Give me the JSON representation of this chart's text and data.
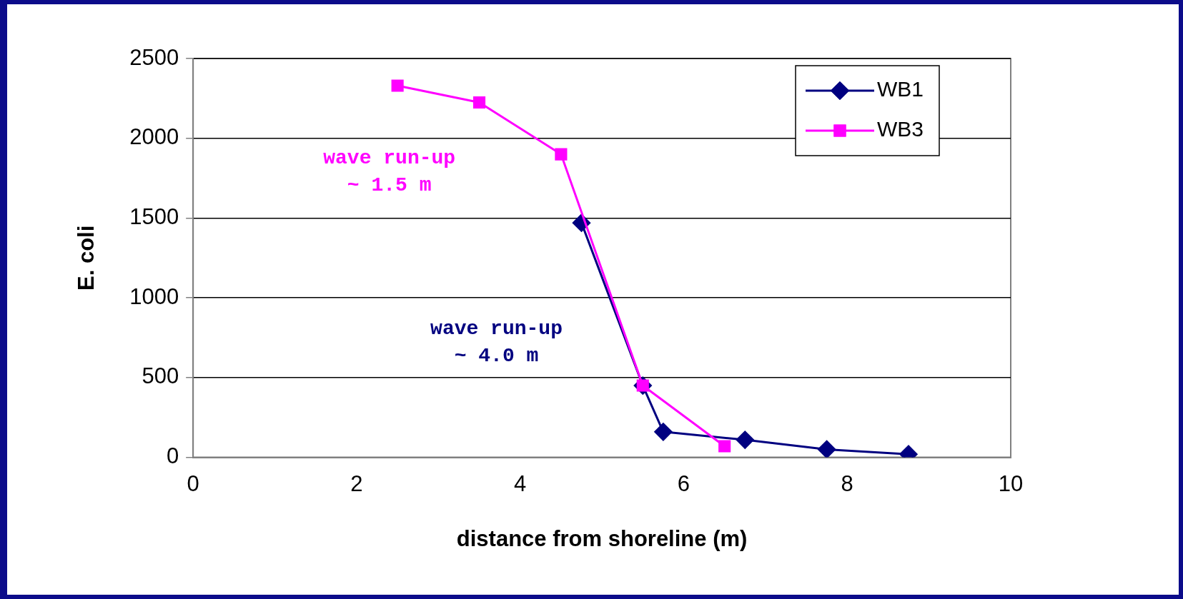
{
  "chart_data": {
    "type": "line",
    "xlabel": "distance from shoreline (m)",
    "ylabel": "E. coli",
    "xlim": [
      0,
      10
    ],
    "xticks": [
      0,
      2,
      4,
      6,
      8,
      10
    ],
    "ylim": [
      0,
      2500
    ],
    "yticks": [
      0,
      500,
      1000,
      1500,
      2000,
      2500
    ],
    "grid": "y",
    "legend": "top right",
    "line_style": "solid",
    "series": [
      {
        "name": "WB1",
        "color": "#000080",
        "marker": "diamond",
        "x": [
          4.75,
          5.5,
          5.75,
          6.75,
          7.75,
          8.75
        ],
        "values": [
          1470,
          450,
          160,
          110,
          50,
          20
        ]
      },
      {
        "name": "WB3",
        "color": "#ff00ff",
        "marker": "square",
        "x": [
          2.5,
          3.5,
          4.5,
          5.5,
          6.5
        ],
        "values": [
          2330,
          2225,
          1900,
          450,
          70
        ]
      }
    ],
    "annotations": [
      "wave run-up\n~ 4.0 m",
      "wave run-up\n~ 1.5 m"
    ]
  }
}
